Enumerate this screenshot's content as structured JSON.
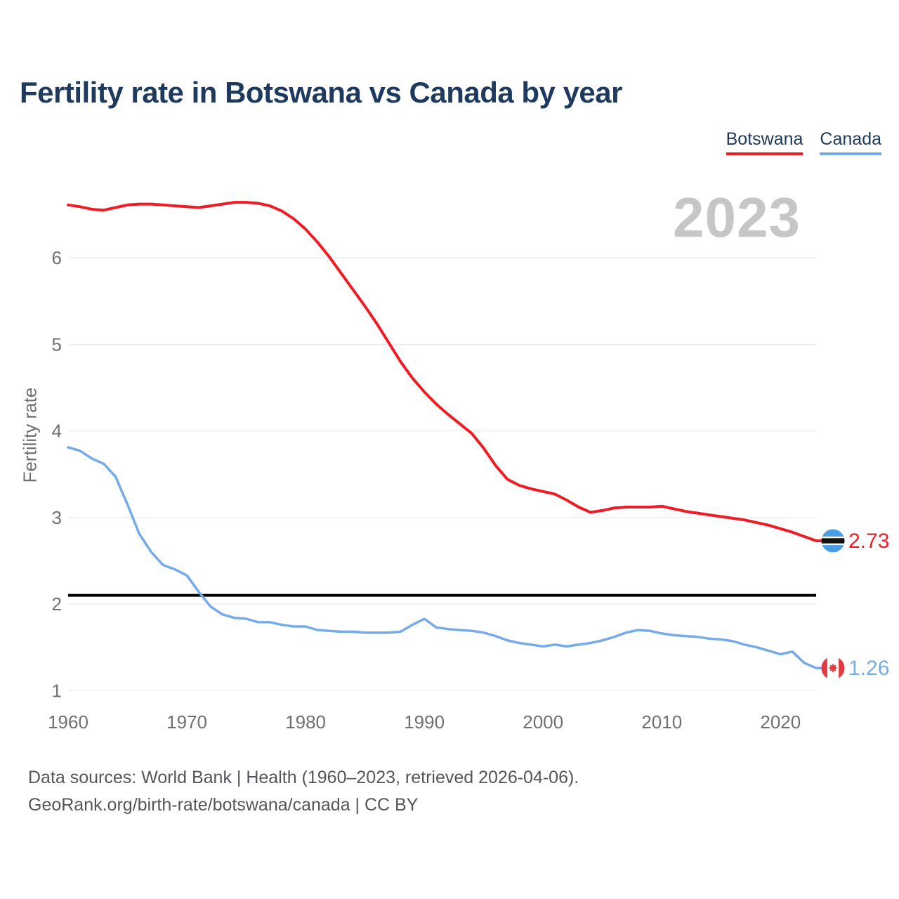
{
  "header": {
    "title": "Fertility rate in Botswana vs Canada by year"
  },
  "legend": {
    "items": [
      {
        "label": "Botswana",
        "color": "#EE1C25"
      },
      {
        "label": "Canada",
        "color": "#74ABE8"
      }
    ]
  },
  "chart_data": {
    "type": "line",
    "title": "Fertility rate in Botswana vs Canada by year",
    "xlabel": "",
    "ylabel": "Fertility rate",
    "watermark": "2023",
    "grid": "horizontal",
    "legend_position": "top-right",
    "xlim": [
      1960,
      2023
    ],
    "ylim": [
      0.95,
      6.8
    ],
    "x_ticks": [
      1960,
      1970,
      1980,
      1990,
      2000,
      2010,
      2020
    ],
    "y_ticks": [
      1,
      2,
      3,
      4,
      5,
      6
    ],
    "reference_line": {
      "value": 2.1,
      "color": "#000000"
    },
    "years": [
      1960,
      1961,
      1962,
      1963,
      1964,
      1965,
      1966,
      1967,
      1968,
      1969,
      1970,
      1971,
      1972,
      1973,
      1974,
      1975,
      1976,
      1977,
      1978,
      1979,
      1980,
      1981,
      1982,
      1983,
      1984,
      1985,
      1986,
      1987,
      1988,
      1989,
      1990,
      1991,
      1992,
      1993,
      1994,
      1995,
      1996,
      1997,
      1998,
      1999,
      2000,
      2001,
      2002,
      2003,
      2004,
      2005,
      2006,
      2007,
      2008,
      2009,
      2010,
      2011,
      2012,
      2013,
      2014,
      2015,
      2016,
      2017,
      2018,
      2019,
      2020,
      2021,
      2022,
      2023
    ],
    "series": [
      {
        "name": "Botswana",
        "color": "#EE1C25",
        "end_label": "2.73",
        "end_flag": "botswana-flag",
        "values": [
          6.61,
          6.59,
          6.56,
          6.55,
          6.58,
          6.61,
          6.62,
          6.62,
          6.61,
          6.6,
          6.59,
          6.58,
          6.6,
          6.62,
          6.64,
          6.64,
          6.63,
          6.6,
          6.54,
          6.45,
          6.33,
          6.18,
          6.01,
          5.82,
          5.63,
          5.44,
          5.24,
          5.02,
          4.8,
          4.61,
          4.45,
          4.31,
          4.19,
          4.08,
          3.97,
          3.8,
          3.6,
          3.44,
          3.37,
          3.33,
          3.3,
          3.27,
          3.2,
          3.12,
          3.06,
          3.08,
          3.11,
          3.12,
          3.12,
          3.12,
          3.13,
          3.1,
          3.07,
          3.05,
          3.03,
          3.01,
          2.99,
          2.97,
          2.94,
          2.91,
          2.87,
          2.83,
          2.78,
          2.73
        ]
      },
      {
        "name": "Canada",
        "color": "#74ABE8",
        "end_label": "1.26",
        "end_flag": "canada-flag",
        "values": [
          3.81,
          3.77,
          3.68,
          3.62,
          3.47,
          3.15,
          2.81,
          2.6,
          2.45,
          2.4,
          2.33,
          2.14,
          1.97,
          1.88,
          1.84,
          1.83,
          1.79,
          1.79,
          1.76,
          1.74,
          1.74,
          1.7,
          1.69,
          1.68,
          1.68,
          1.67,
          1.67,
          1.67,
          1.68,
          1.76,
          1.83,
          1.73,
          1.71,
          1.7,
          1.69,
          1.67,
          1.63,
          1.58,
          1.55,
          1.53,
          1.51,
          1.53,
          1.51,
          1.53,
          1.55,
          1.58,
          1.62,
          1.67,
          1.7,
          1.69,
          1.66,
          1.64,
          1.63,
          1.62,
          1.6,
          1.59,
          1.57,
          1.53,
          1.5,
          1.46,
          1.42,
          1.45,
          1.32,
          1.26
        ]
      }
    ]
  },
  "footer": {
    "line1": "Data sources: World Bank | Health (1960–2023, retrieved 2026-04-06).",
    "line2": "GeoRank.org/birth-rate/botswana/canada | CC BY"
  }
}
